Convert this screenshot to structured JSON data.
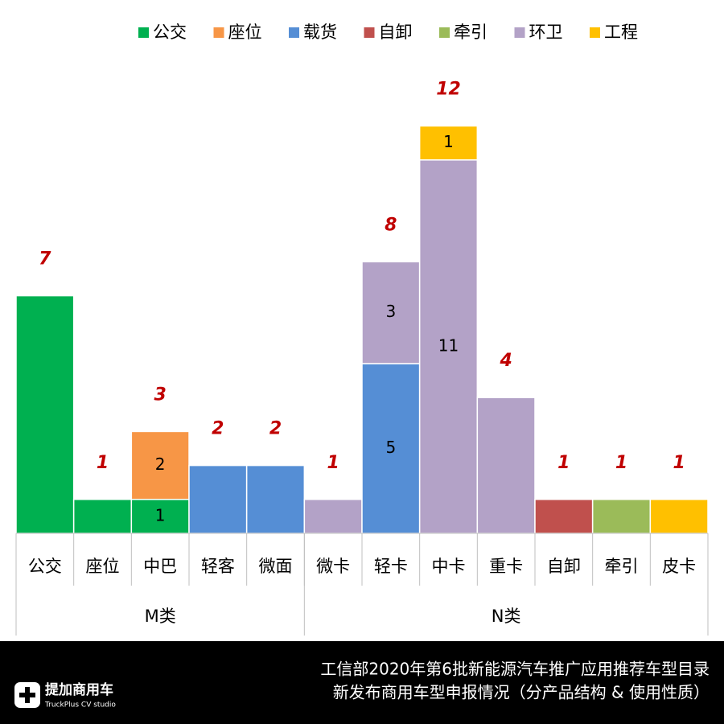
{
  "chart_data": {
    "type": "stacked-bar",
    "categories": [
      "公交",
      "座位",
      "中巴",
      "轻客",
      "微面",
      "微卡",
      "轻卡",
      "中卡",
      "重卡",
      "自卸",
      "牵引",
      "皮卡"
    ],
    "groups": [
      {
        "name": "M类",
        "categories": [
          "公交",
          "座位",
          "中巴",
          "轻客",
          "微面"
        ]
      },
      {
        "name": "N类",
        "categories": [
          "微卡",
          "轻卡",
          "中卡",
          "重卡",
          "自卸",
          "牵引",
          "皮卡"
        ]
      }
    ],
    "series": [
      {
        "name": "公交",
        "color": "#00b050",
        "values": [
          7,
          1,
          1,
          null,
          null,
          null,
          null,
          null,
          null,
          null,
          null,
          null
        ],
        "value_labels": [
          null,
          null,
          "1",
          null,
          null,
          null,
          null,
          null,
          null,
          null,
          null,
          null
        ]
      },
      {
        "name": "座位",
        "color": "#f79646",
        "values": [
          null,
          null,
          2,
          null,
          null,
          null,
          null,
          null,
          null,
          null,
          null,
          null
        ],
        "value_labels": [
          null,
          null,
          "2",
          null,
          null,
          null,
          null,
          null,
          null,
          null,
          null,
          null
        ]
      },
      {
        "name": "载货",
        "color": "#558ed5",
        "values": [
          null,
          null,
          null,
          2,
          2,
          null,
          5,
          null,
          null,
          null,
          null,
          null
        ],
        "value_labels": [
          null,
          null,
          null,
          null,
          null,
          null,
          "5",
          null,
          null,
          null,
          null,
          null
        ]
      },
      {
        "name": "自卸",
        "color": "#c0504d",
        "values": [
          null,
          null,
          null,
          null,
          null,
          null,
          null,
          null,
          null,
          1,
          null,
          null
        ],
        "value_labels": [
          null,
          null,
          null,
          null,
          null,
          null,
          null,
          null,
          null,
          null,
          null,
          null
        ]
      },
      {
        "name": "牵引",
        "color": "#9bbb59",
        "values": [
          null,
          null,
          null,
          null,
          null,
          null,
          null,
          null,
          null,
          null,
          1,
          null
        ],
        "value_labels": [
          null,
          null,
          null,
          null,
          null,
          null,
          null,
          null,
          null,
          null,
          null,
          null
        ]
      },
      {
        "name": "环卫",
        "color": "#b3a2c7",
        "values": [
          null,
          null,
          null,
          null,
          null,
          1,
          3,
          11,
          4,
          null,
          null,
          null
        ],
        "value_labels": [
          null,
          null,
          null,
          null,
          null,
          null,
          "3",
          "11",
          null,
          null,
          null,
          null
        ]
      },
      {
        "name": "工程",
        "color": "#ffc000",
        "values": [
          null,
          null,
          null,
          null,
          null,
          null,
          null,
          1,
          null,
          null,
          null,
          1
        ],
        "value_labels": [
          null,
          null,
          null,
          null,
          null,
          null,
          null,
          "1",
          null,
          null,
          null,
          null
        ]
      }
    ],
    "totals": [
      7,
      1,
      3,
      2,
      2,
      1,
      8,
      12,
      4,
      1,
      1,
      1
    ]
  },
  "footer": {
    "logo_name": "提加商用车",
    "logo_sub": "TruckPlus CV studio",
    "title_lines": [
      "工信部2020年第6批新能源汽车推广应用推荐车型目录",
      "新发布商用车型申报情况（分产品结构 & 使用性质）"
    ]
  }
}
